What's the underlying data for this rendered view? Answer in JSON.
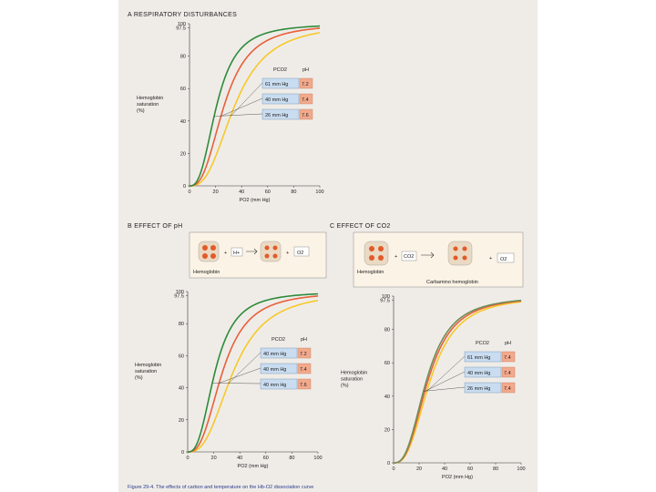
{
  "caption": "Figure 29-4. The effects of carbon and temperature on the Hb-O2 dissociation curve",
  "chart_data": [
    {
      "type": "line",
      "panel": "A",
      "title": "RESPIRATORY DISTURBANCES",
      "ylabel": "Hemoglobin saturation (%)",
      "xlabel": "PO2 (mm Hg)",
      "xlim": [
        0,
        100
      ],
      "ylim": [
        0,
        100
      ],
      "yticks": [
        0,
        20,
        40,
        60,
        80,
        97.5,
        100
      ],
      "xticks": [
        0,
        20,
        40,
        60,
        80,
        100
      ],
      "legend_header": [
        "PCO2",
        "pH"
      ],
      "series": [
        {
          "name": "61 mm Hg",
          "ph": "7.2",
          "color": "#f7c82a",
          "p50": 35,
          "n": 2.7
        },
        {
          "name": "40 mm Hg",
          "ph": "7.4",
          "color": "#e8603a",
          "p50": 26.8,
          "n": 2.7
        },
        {
          "name": "26 mm Hg",
          "ph": "7.6",
          "color": "#2e8b3a",
          "p50": 21,
          "n": 2.7
        }
      ]
    },
    {
      "type": "line",
      "panel": "B",
      "title": "EFFECT OF pH",
      "ylabel": "Hemoglobin saturation (%)",
      "xlabel": "PO2 (mm Hg)",
      "xlim": [
        0,
        100
      ],
      "ylim": [
        0,
        100
      ],
      "yticks": [
        0,
        20,
        40,
        60,
        80,
        97.5,
        100
      ],
      "xticks": [
        0,
        20,
        40,
        60,
        80,
        100
      ],
      "legend_header": [
        "PCO2",
        "pH"
      ],
      "diagram": {
        "left": "Hemoglobin",
        "reactants": [
          "+",
          "H+"
        ],
        "products": [
          "+",
          "O2"
        ]
      },
      "series": [
        {
          "name": "40 mm Hg",
          "ph": "7.2",
          "color": "#f7c82a",
          "p50": 35,
          "n": 2.7
        },
        {
          "name": "40 mm Hg",
          "ph": "7.4",
          "color": "#e8603a",
          "p50": 26.8,
          "n": 2.7
        },
        {
          "name": "40 mm Hg",
          "ph": "7.6",
          "color": "#2e8b3a",
          "p50": 21,
          "n": 2.7
        }
      ]
    },
    {
      "type": "line",
      "panel": "C",
      "title": "EFFECT OF CO2",
      "ylabel": "Hemoglobin saturation (%)",
      "xlabel": "PO2 (mm Hg)",
      "xlim": [
        0,
        100
      ],
      "ylim": [
        0,
        100
      ],
      "yticks": [
        0,
        20,
        40,
        60,
        80,
        97.5,
        100
      ],
      "xticks": [
        0,
        20,
        40,
        60,
        80,
        100
      ],
      "legend_header": [
        "PCO2",
        "pH"
      ],
      "diagram": {
        "left": "Hemoglobin",
        "reactants": [
          "+",
          "CO2"
        ],
        "products": [
          "+",
          "O2"
        ],
        "right": "Carbamino hemoglobin"
      },
      "series": [
        {
          "name": "61 mm Hg",
          "ph": "7.4",
          "color": "#f7c82a",
          "p50": 29,
          "n": 2.7
        },
        {
          "name": "40 mm Hg",
          "ph": "7.4",
          "color": "#e8603a",
          "p50": 27.2,
          "n": 2.7
        },
        {
          "name": "26 mm Hg",
          "ph": "7.4",
          "color": "#6f8f5a",
          "p50": 26,
          "n": 2.7
        }
      ]
    }
  ]
}
